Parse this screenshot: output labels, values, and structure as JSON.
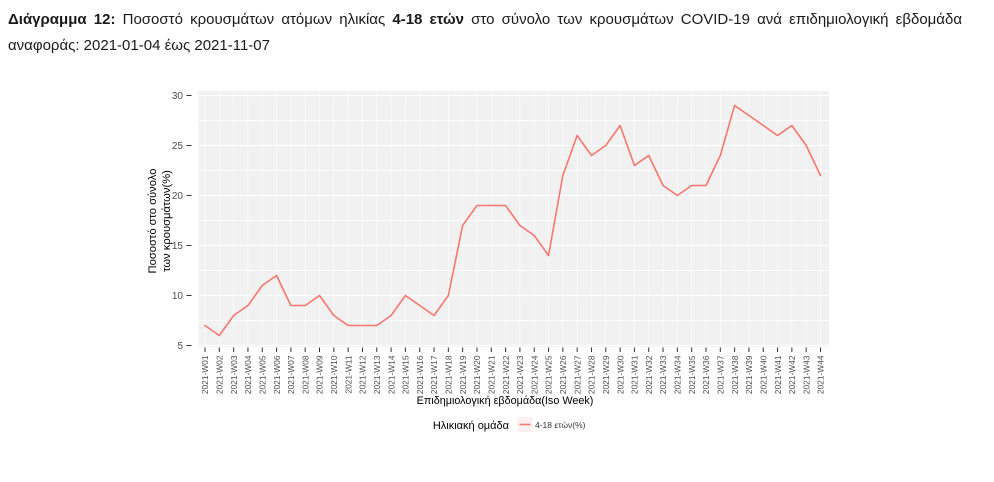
{
  "header": {
    "label_bold": "Διάγραμμα 12:",
    "text_1": "Ποσοστό κρουσμάτων ατόμων ηλικίας",
    "age_bold": "4-18 ετών",
    "text_2": "στο σύνολο των κρουσμάτων COVID-19 ανά επιδημιολογική εβδομάδα",
    "line2": "αναφοράς: 2021-01-04 έως 2021-11-07"
  },
  "chart_data": {
    "type": "line",
    "xlabel": "Επιδημιολογική εβδομάδα(Iso Week)",
    "ylabel": "Ποσοστό στο σύνολο των κρουσμάτων(%)",
    "ylabel_lines": [
      "Ποσοστό στο σύνολο",
      "των κρουσμάτων(%)"
    ],
    "ylim": [
      5,
      30
    ],
    "yticks": [
      5,
      10,
      15,
      20,
      25,
      30
    ],
    "grid": true,
    "legend_position": "bottom",
    "legend_title": "Ηλικιακή ομάδα",
    "categories": [
      "2021-W01",
      "2021-W02",
      "2021-W03",
      "2021-W04",
      "2021-W05",
      "2021-W06",
      "2021-W07",
      "2021-W08",
      "2021-W09",
      "2021-W10",
      "2021-W11",
      "2021-W12",
      "2021-W13",
      "2021-W14",
      "2021-W15",
      "2021-W16",
      "2021-W17",
      "2021-W18",
      "2021-W19",
      "2021-W20",
      "2021-W21",
      "2021-W22",
      "2021-W23",
      "2021-W24",
      "2021-W25",
      "2021-W26",
      "2021-W27",
      "2021-W28",
      "2021-W29",
      "2021-W30",
      "2021-W31",
      "2021-W32",
      "2021-W33",
      "2021-W34",
      "2021-W35",
      "2021-W36",
      "2021-W37",
      "2021-W38",
      "2021-W39",
      "2021-W40",
      "2021-W41",
      "2021-W42",
      "2021-W43",
      "2021-W44"
    ],
    "series": [
      {
        "name": "4-18 ετών(%)",
        "color": "#F8766D",
        "values": [
          7,
          6,
          8,
          9,
          11,
          12,
          9,
          9,
          10,
          8,
          7,
          7,
          7,
          8,
          10,
          9,
          8,
          10,
          17,
          19,
          19,
          19,
          17,
          16,
          14,
          22,
          26,
          24,
          25,
          27,
          23,
          24,
          21,
          20,
          21,
          21,
          24,
          29,
          28,
          27,
          26,
          27,
          25,
          22
        ]
      }
    ]
  },
  "colors": {
    "panel_bg": "#f1f1f1",
    "grid": "#ffffff",
    "tick_text": "#4d4d4d",
    "axis_title": "#000000",
    "tick_mark": "#333333",
    "legend_key_bg": "#fcf1f0"
  }
}
